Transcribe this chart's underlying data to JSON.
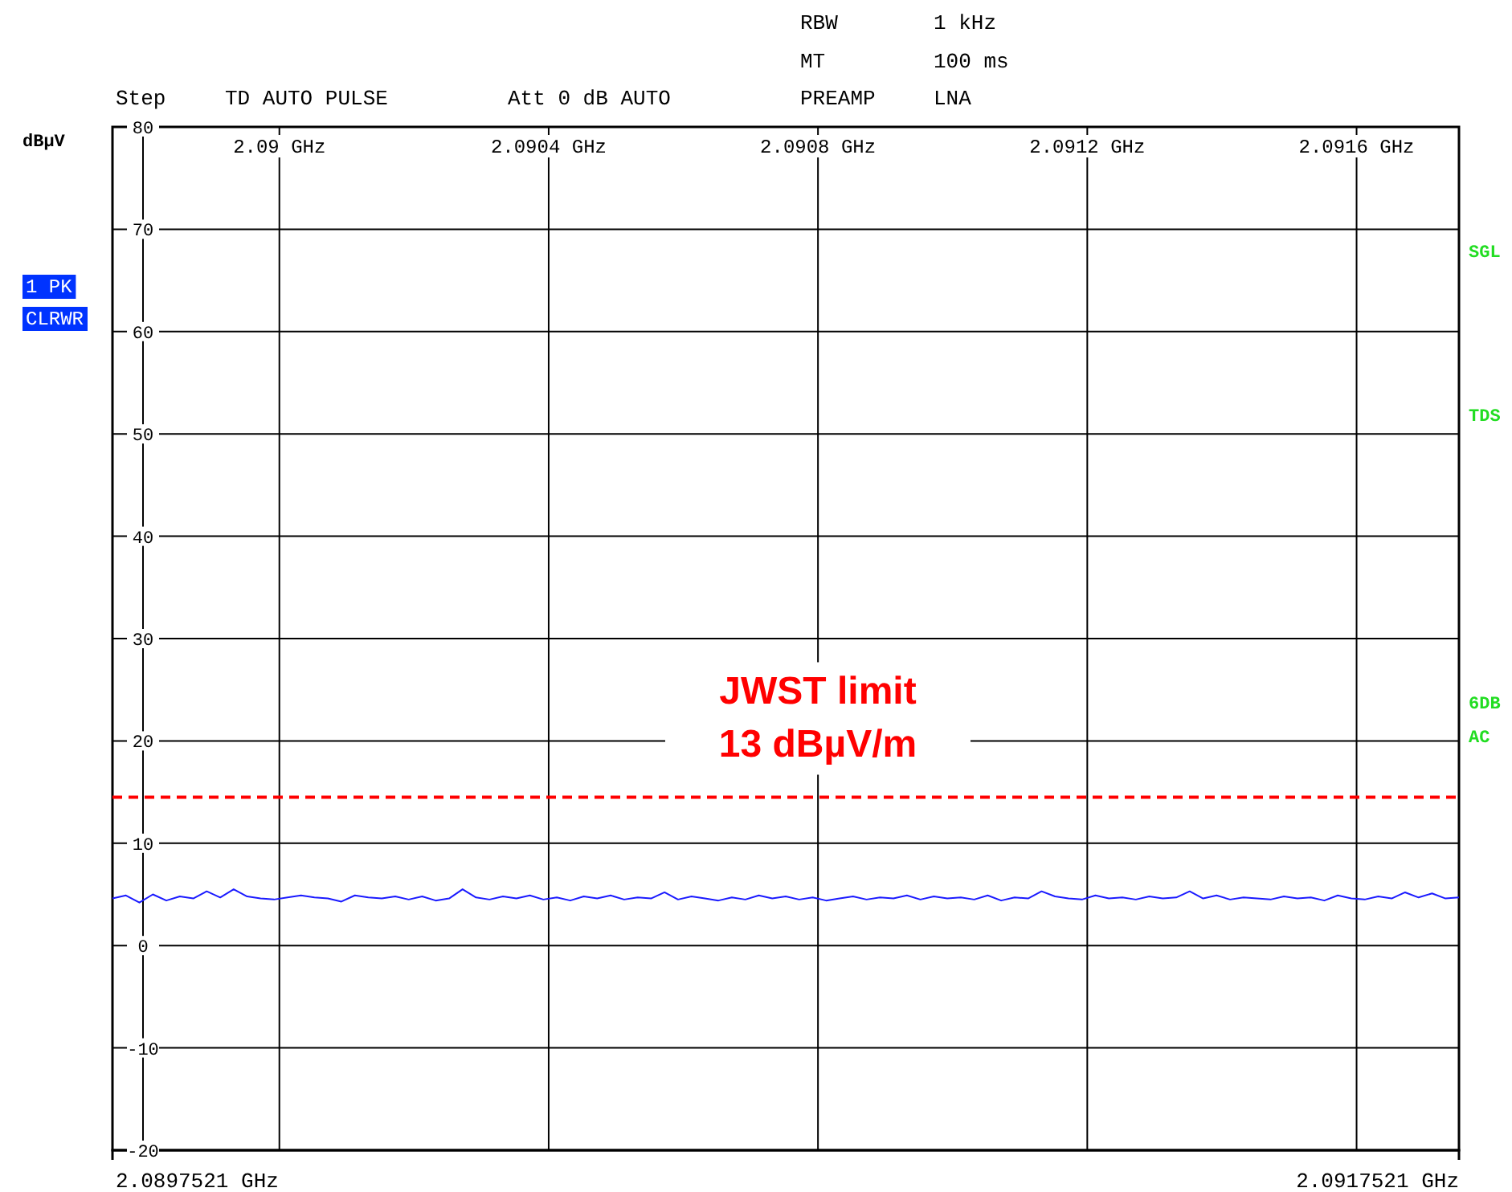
{
  "chart_data": {
    "type": "line",
    "ylabel": "dBµV",
    "xlim": [
      2.0897521,
      2.0917521
    ],
    "ylim": [
      -20,
      80
    ],
    "xticks": [
      {
        "value": 2.09,
        "label": "2.09 GHz"
      },
      {
        "value": 2.0904,
        "label": "2.0904 GHz"
      },
      {
        "value": 2.0908,
        "label": "2.0908 GHz"
      },
      {
        "value": 2.0912,
        "label": "2.0912 GHz"
      },
      {
        "value": 2.0916,
        "label": "2.0916 GHz"
      }
    ],
    "yticks": [
      -20,
      -10,
      0,
      10,
      20,
      30,
      40,
      50,
      60,
      70,
      80
    ],
    "grid": true,
    "line_style": "solid",
    "marker": "none",
    "ref_lines": [
      {
        "axis": "y",
        "value": 14.5,
        "label": "JWST limit\n13 dBµV/m",
        "color": "#ff0000",
        "line_style": "dashed"
      }
    ],
    "annotations": [
      "RBW",
      "1 kHz",
      "MT",
      "100 ms",
      "Step",
      "TD AUTO PULSE",
      "Att 0 dB AUTO",
      "PREAMP",
      "LNA",
      "1 PK",
      "CLRWR",
      "SGL",
      "TDS",
      "6DB",
      "AC",
      "2.0897521 GHz",
      "2.0917521 GHz"
    ],
    "x": [
      2.0897521,
      2.0897721,
      2.0897921,
      2.0898121,
      2.0898321,
      2.0898521,
      2.0898721,
      2.0898921,
      2.0899121,
      2.0899321,
      2.0899521,
      2.0899721,
      2.0899921,
      2.0900121,
      2.0900321,
      2.0900521,
      2.0900721,
      2.0900921,
      2.0901121,
      2.0901321,
      2.0901521,
      2.0901721,
      2.0901921,
      2.0902121,
      2.0902321,
      2.0902521,
      2.0902721,
      2.0902921,
      2.0903121,
      2.0903321,
      2.0903521,
      2.0903721,
      2.0903921,
      2.0904121,
      2.0904321,
      2.0904521,
      2.0904721,
      2.0904921,
      2.0905121,
      2.0905321,
      2.0905521,
      2.0905721,
      2.0905921,
      2.0906121,
      2.0906321,
      2.0906521,
      2.0906721,
      2.0906921,
      2.0907121,
      2.0907321,
      2.0907521,
      2.0907721,
      2.0907921,
      2.0908121,
      2.0908321,
      2.0908521,
      2.0908721,
      2.0908921,
      2.0909121,
      2.0909321,
      2.0909521,
      2.0909721,
      2.0909921,
      2.0910121,
      2.0910321,
      2.0910521,
      2.0910721,
      2.0910921,
      2.0911121,
      2.0911321,
      2.0911521,
      2.0911721,
      2.0911921,
      2.0912121,
      2.0912321,
      2.0912521,
      2.0912721,
      2.0912921,
      2.0913121,
      2.0913321,
      2.0913521,
      2.0913721,
      2.0913921,
      2.0914121,
      2.0914321,
      2.0914521,
      2.0914721,
      2.0914921,
      2.0915121,
      2.0915321,
      2.0915521,
      2.0915721,
      2.0915921,
      2.0916121,
      2.0916321,
      2.0916521,
      2.0916721,
      2.0916921,
      2.0917121,
      2.0917321,
      2.0917521
    ],
    "series": [
      {
        "color": "#1a1aff",
        "values": [
          4.6,
          4.9,
          4.2,
          5.0,
          4.4,
          4.8,
          4.6,
          5.3,
          4.7,
          5.5,
          4.8,
          4.6,
          4.5,
          4.7,
          4.9,
          4.7,
          4.6,
          4.3,
          4.9,
          4.7,
          4.6,
          4.8,
          4.5,
          4.8,
          4.4,
          4.6,
          5.5,
          4.7,
          4.5,
          4.8,
          4.6,
          4.9,
          4.5,
          4.7,
          4.4,
          4.8,
          4.6,
          4.9,
          4.5,
          4.7,
          4.6,
          5.2,
          4.5,
          4.8,
          4.6,
          4.4,
          4.7,
          4.5,
          4.9,
          4.6,
          4.8,
          4.5,
          4.7,
          4.4,
          4.6,
          4.8,
          4.5,
          4.7,
          4.6,
          4.9,
          4.5,
          4.8,
          4.6,
          4.7,
          4.5,
          4.9,
          4.4,
          4.7,
          4.6,
          5.3,
          4.8,
          4.6,
          4.5,
          4.9,
          4.6,
          4.7,
          4.5,
          4.8,
          4.6,
          4.7,
          5.3,
          4.6,
          4.9,
          4.5,
          4.7,
          4.6,
          4.5,
          4.8,
          4.6,
          4.7,
          4.4,
          4.9,
          4.6,
          4.5,
          4.8,
          4.6,
          5.2,
          4.7,
          5.1,
          4.6,
          4.7
        ]
      }
    ]
  }
}
